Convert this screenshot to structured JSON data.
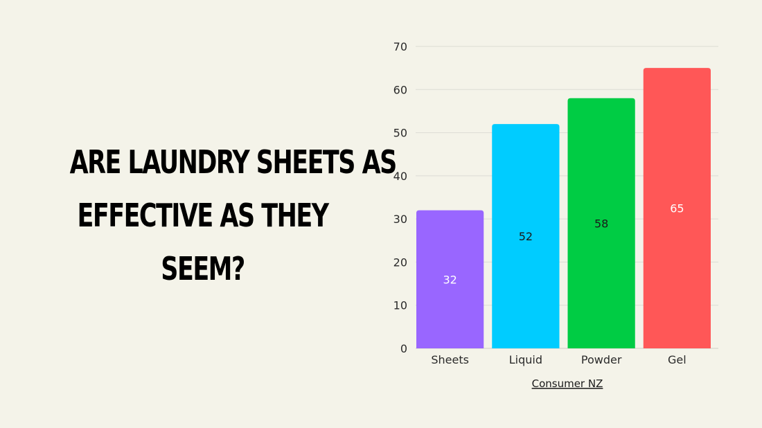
{
  "headline": {
    "lines": [
      "Are laundry sheets as",
      "effective as they",
      "seem?"
    ]
  },
  "chart_data": {
    "type": "bar",
    "categories": [
      "Sheets",
      "Liquid",
      "Powder",
      "Gel"
    ],
    "values": [
      32,
      52,
      58,
      65
    ],
    "bar_colors": [
      "#9966ff",
      "#00ccff",
      "#00cc44",
      "#ff5757"
    ],
    "value_label_colors": [
      "#ffffff",
      "#1a1a1a",
      "#1a1a1a",
      "#ffffff"
    ],
    "ylim": [
      0,
      70
    ],
    "yticks": [
      0,
      10,
      20,
      30,
      40,
      50,
      60,
      70
    ],
    "grid": true,
    "source": "Consumer NZ"
  }
}
